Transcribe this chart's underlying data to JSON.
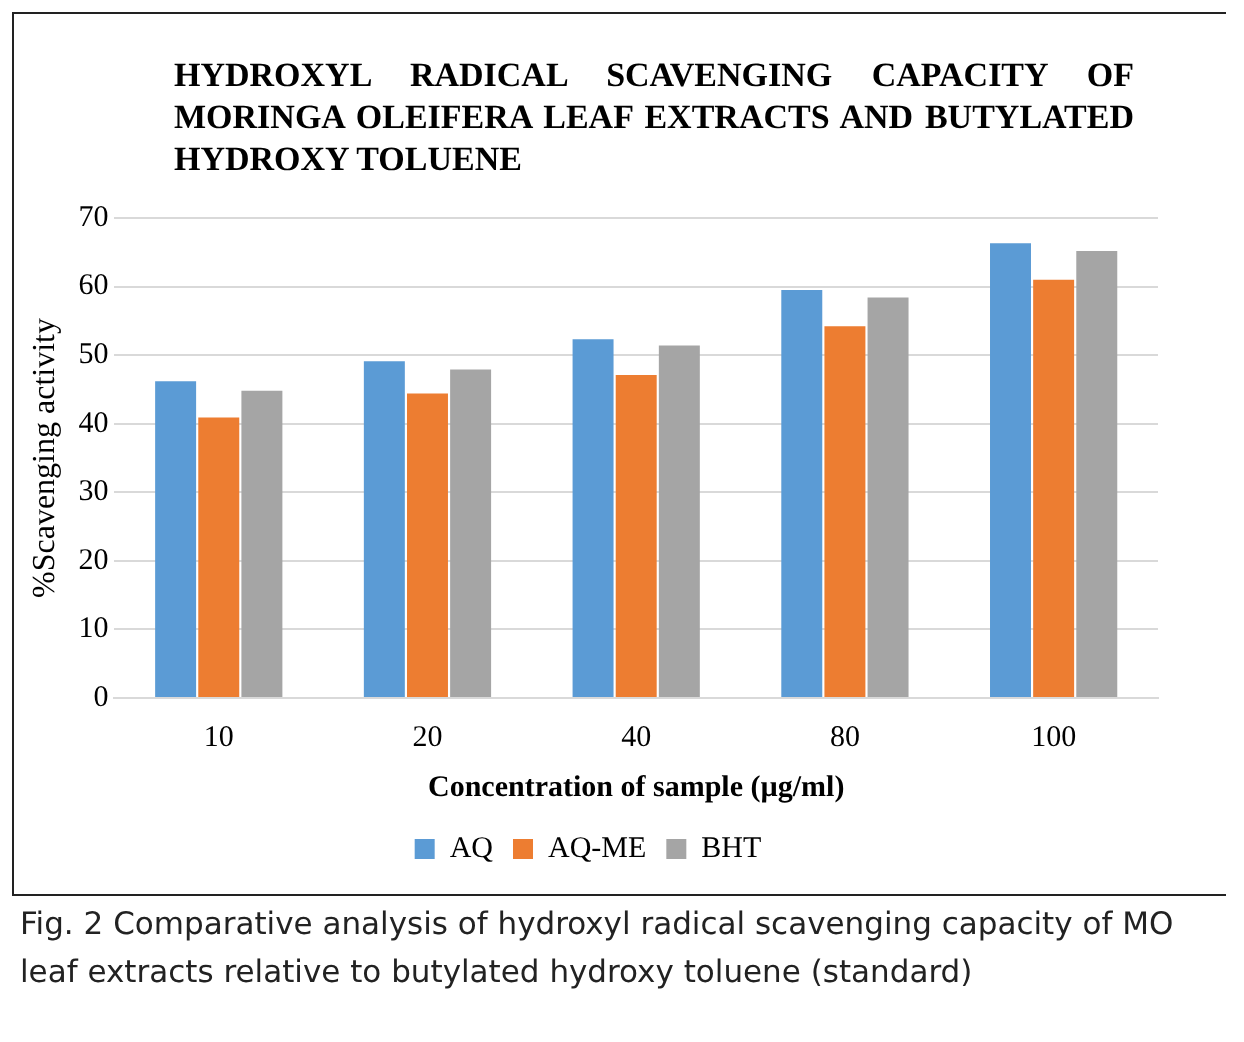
{
  "chart_data": {
    "type": "bar",
    "title": "HYDROXYL RADICAL SCAVENGING CAPACITY OF MORINGA OLEIFERA LEAF EXTRACTS AND BUTYLATED HYDROXY TOLUENE",
    "xlabel": "Concentration of sample (µg/ml)",
    "ylabel": "%Scavenging activity",
    "categories": [
      "10",
      "20",
      "40",
      "80",
      "100"
    ],
    "series": [
      {
        "name": "AQ",
        "color": "#5b9bd5",
        "values": [
          46.2,
          49.1,
          52.3,
          59.5,
          66.3
        ]
      },
      {
        "name": "AQ-ME",
        "color": "#ed7d31",
        "values": [
          40.9,
          44.4,
          47.1,
          54.2,
          61
        ]
      },
      {
        "name": "BHT",
        "color": "#a5a5a5",
        "values": [
          44.8,
          47.9,
          51.4,
          58.4,
          65.2
        ]
      }
    ],
    "ylim": [
      0,
      70
    ],
    "yticks": [
      0,
      10,
      20,
      30,
      40,
      50,
      60,
      70
    ],
    "grid": "y",
    "legend": "bottom",
    "annotations": [
      "Fig. 2 Comparative analysis of hydroxyl radical scavenging capacity of MO leaf extracts relative to butylated hydroxy toluene (standard)"
    ]
  }
}
